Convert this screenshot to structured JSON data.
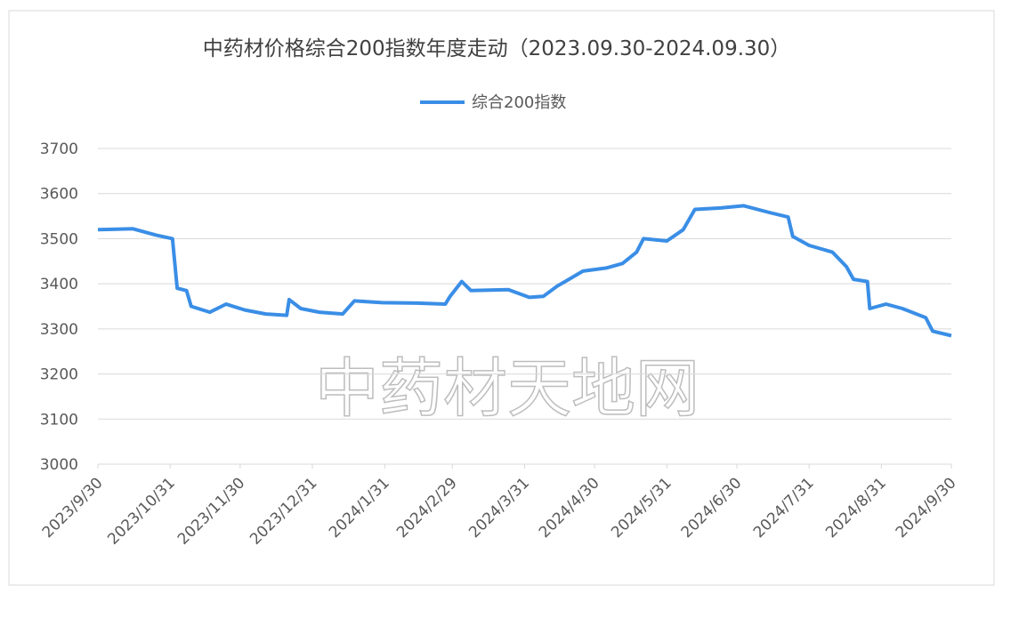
{
  "chart_data": {
    "type": "line",
    "title": "中药材价格综合200指数年度走动（2023.09.30-2024.09.30）",
    "annotation": "中药材天地网",
    "x": [
      "2023/9/30",
      "2023/10/15",
      "2023/10/25",
      "2023/11/1",
      "2023/11/3",
      "2023/11/7",
      "2023/11/9",
      "2023/11/17",
      "2023/11/24",
      "2023/12/2",
      "2023/12/11",
      "2023/12/20",
      "2023/12/21",
      "2023/12/26",
      "2024/1/3",
      "2024/1/13",
      "2024/1/18",
      "2024/1/30",
      "2024/2/14",
      "2024/2/26",
      "2024/2/28",
      "2024/3/4",
      "2024/3/8",
      "2024/3/24",
      "2024/4/2",
      "2024/4/8",
      "2024/4/14",
      "2024/4/19",
      "2024/4/25",
      "2024/5/5",
      "2024/5/12",
      "2024/5/18",
      "2024/5/21",
      "2024/5/31",
      "2024/6/7",
      "2024/6/12",
      "2024/6/23",
      "2024/7/3",
      "2024/7/14",
      "2024/7/22",
      "2024/7/24",
      "2024/7/31",
      "2024/8/10",
      "2024/8/16",
      "2024/8/19",
      "2024/8/25",
      "2024/8/26",
      "2024/9/2",
      "2024/9/9",
      "2024/9/19",
      "2024/9/22",
      "2024/9/30"
    ],
    "series": [
      {
        "name": "综合200指数",
        "color": "#3a8ee6",
        "values": [
          3520,
          3522,
          3508,
          3500,
          3390,
          3385,
          3350,
          3337,
          3355,
          3342,
          3333,
          3330,
          3365,
          3345,
          3337,
          3333,
          3362,
          3358,
          3357,
          3355,
          3372,
          3405,
          3385,
          3387,
          3370,
          3372,
          3395,
          3410,
          3428,
          3435,
          3445,
          3470,
          3500,
          3495,
          3520,
          3565,
          3568,
          3573,
          3558,
          3548,
          3505,
          3485,
          3470,
          3438,
          3410,
          3405,
          3345,
          3355,
          3345,
          3325,
          3295,
          3285
        ]
      }
    ],
    "xlim": [
      "2023/9/30",
      "2024/9/30"
    ],
    "xticks": [
      "2023/9/30",
      "2023/10/31",
      "2023/11/30",
      "2023/12/31",
      "2024/1/31",
      "2024/2/29",
      "2024/3/31",
      "2024/4/30",
      "2024/5/31",
      "2024/6/30",
      "2024/7/31",
      "2024/8/31",
      "2024/9/30"
    ],
    "ylim": [
      3000,
      3700
    ],
    "yticks": [
      3000,
      3100,
      3200,
      3300,
      3400,
      3500,
      3600,
      3700
    ],
    "grid": true,
    "legend": "top"
  }
}
